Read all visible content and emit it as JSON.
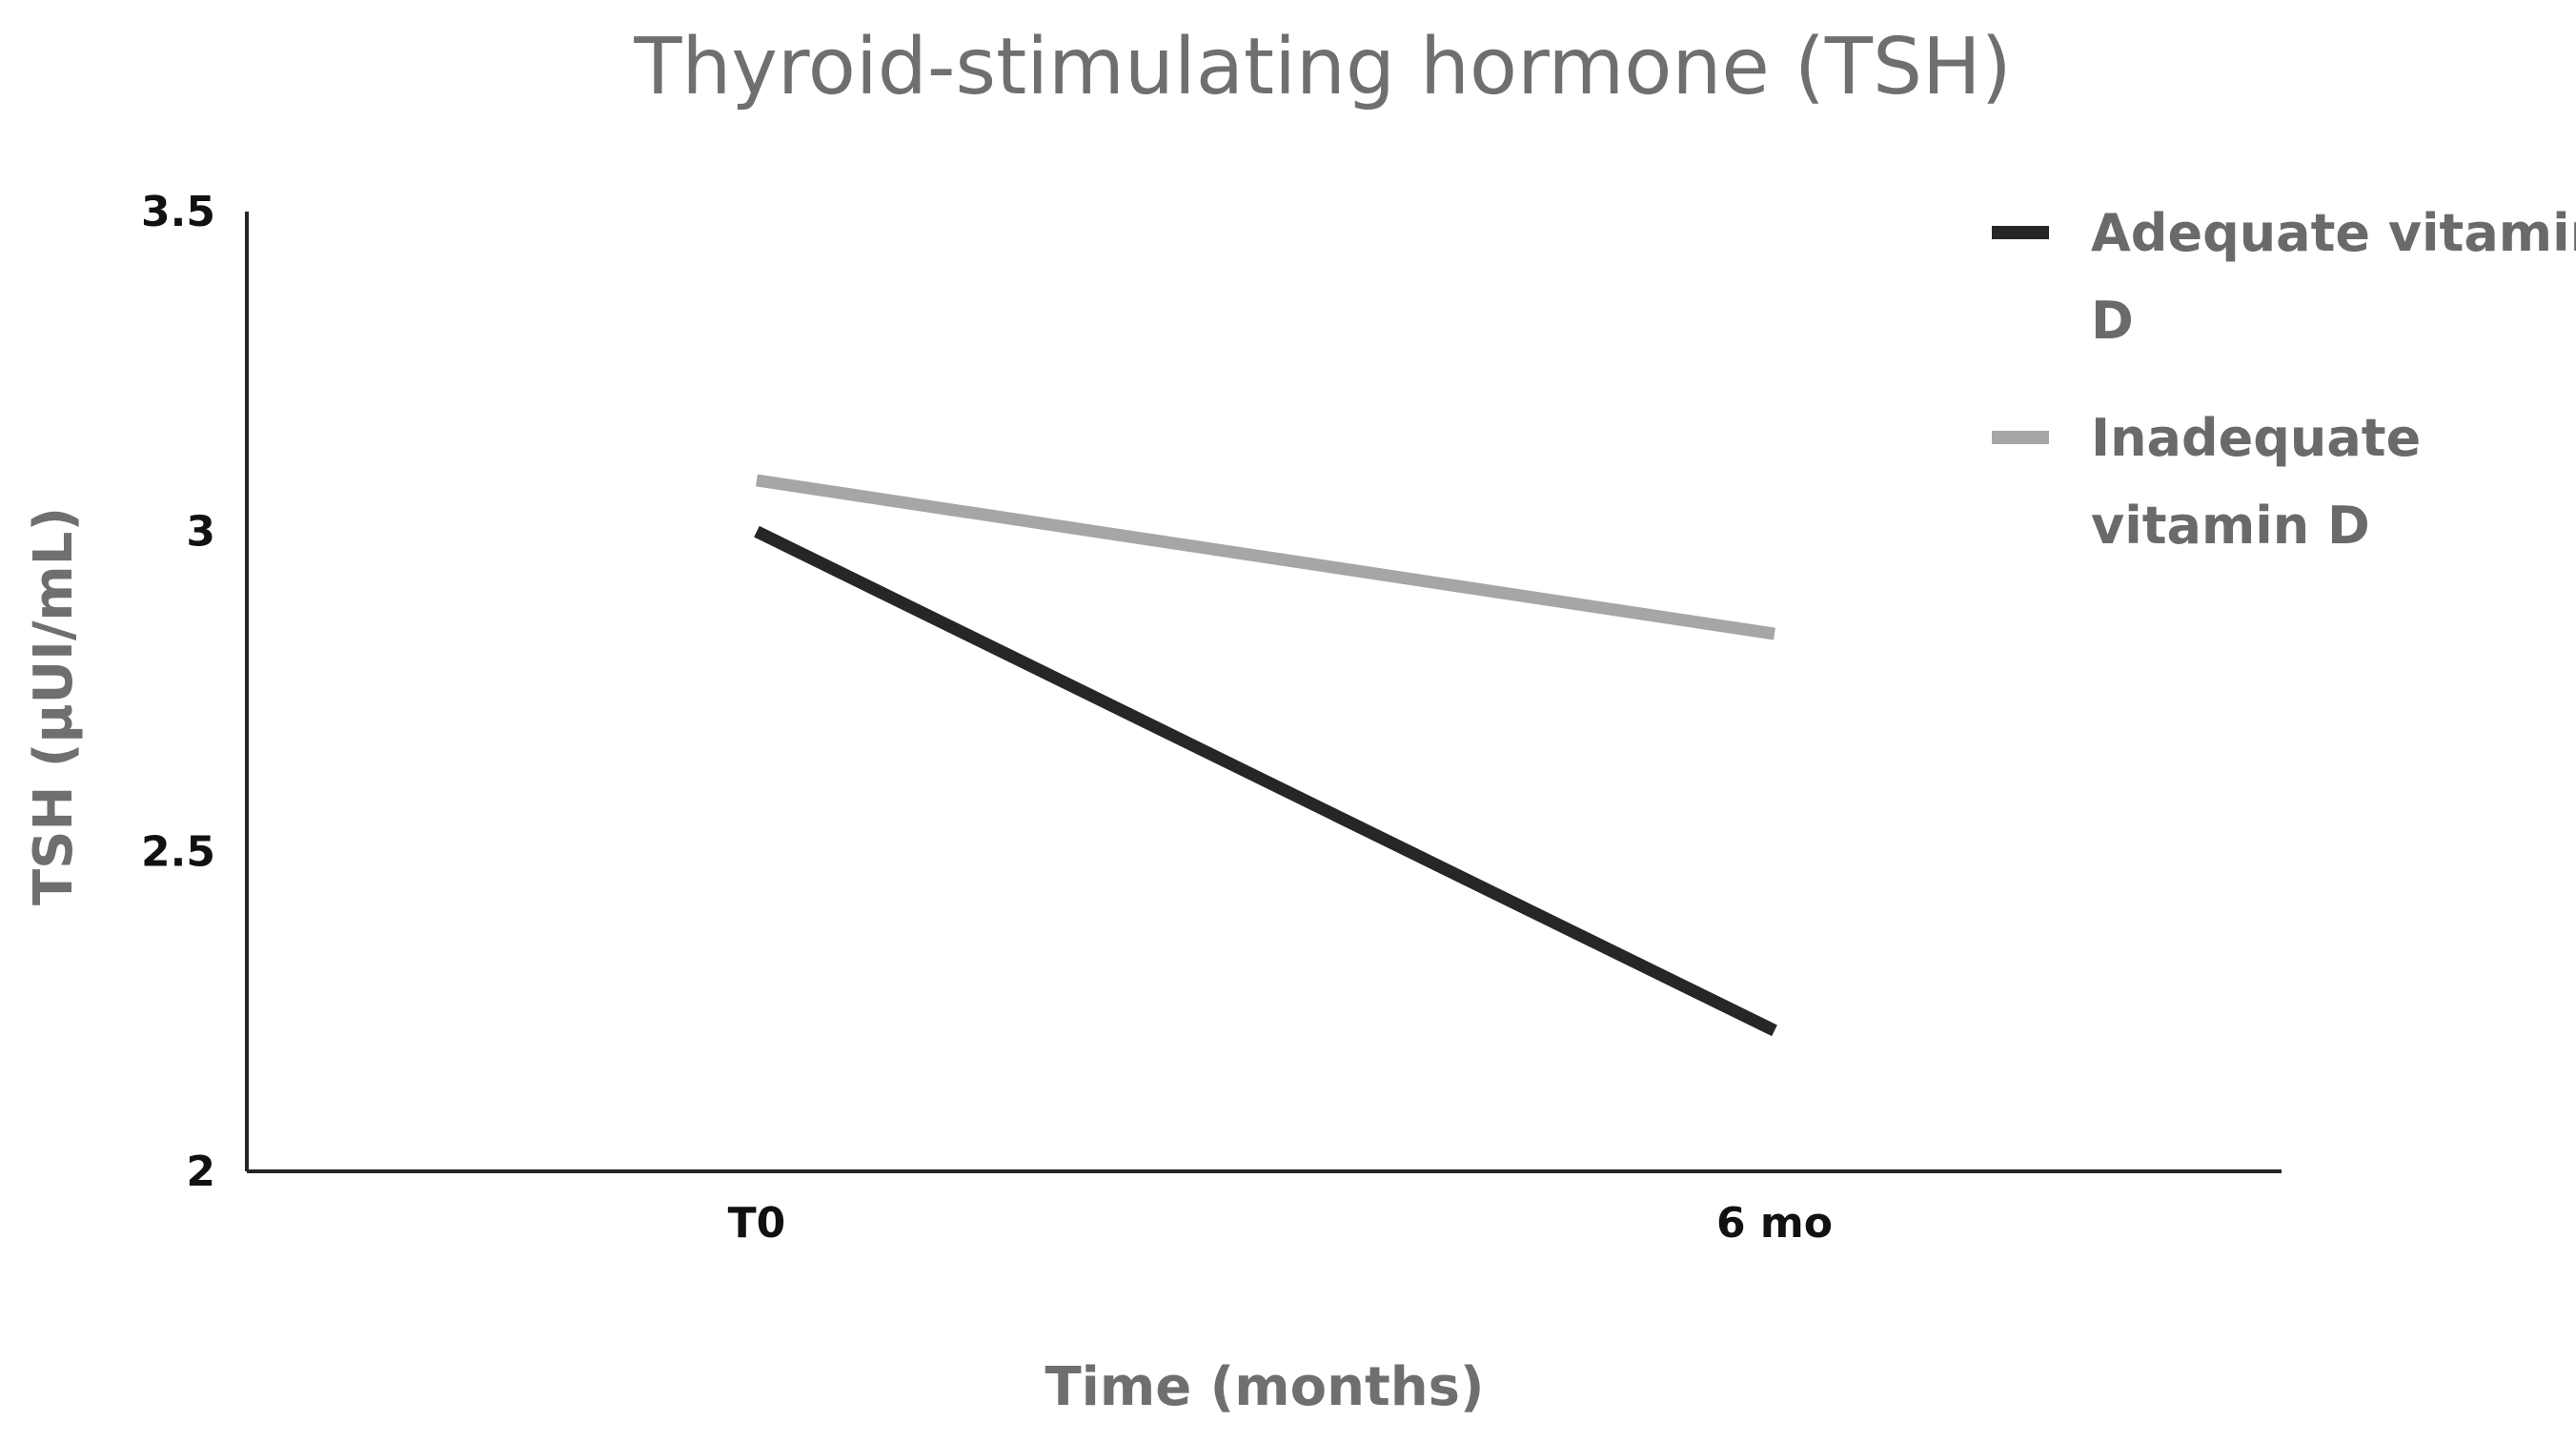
{
  "chart_data": {
    "type": "line",
    "title": "Thyroid-stimulating hormone (TSH)",
    "xlabel": "Time (months)",
    "ylabel": "TSH (µUI/mL)",
    "categories": [
      "T0",
      "6 mo"
    ],
    "ylim": [
      2,
      3.5
    ],
    "yticks": [
      {
        "value": 2,
        "label": "2"
      },
      {
        "value": 2.5,
        "label": "2.5"
      },
      {
        "value": 3,
        "label": "3"
      },
      {
        "value": 3.5,
        "label": "3.5"
      }
    ],
    "grid": false,
    "legend_position": "top-right",
    "series": [
      {
        "name": "Adequate vitamin D",
        "legend_lines": [
          "Adequate vitamin",
          "D"
        ],
        "color": "#262626",
        "values": [
          3.0,
          2.22
        ]
      },
      {
        "name": "Inadequate vitamin D",
        "legend_lines": [
          "Inadequate",
          "vitamin D"
        ],
        "color": "#a6a6a6",
        "values": [
          3.08,
          2.84
        ]
      }
    ]
  }
}
